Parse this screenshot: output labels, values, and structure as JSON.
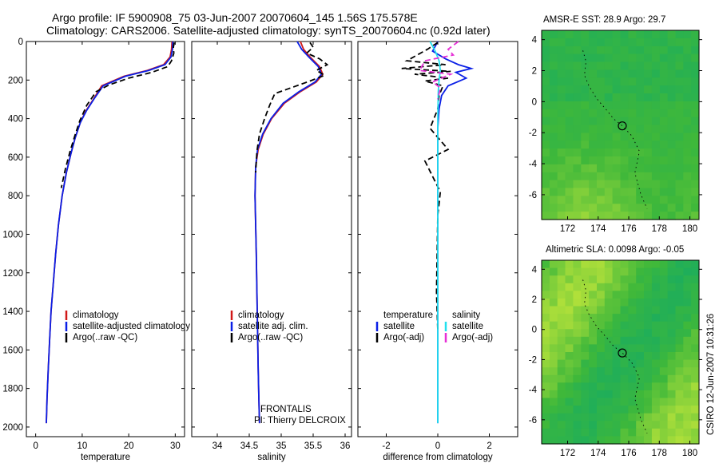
{
  "header": {
    "title_line1": "Argo profile: IF 5900908_75 03-Jun-2007 20070604_145 1.56S 175.578E",
    "title_line2": "Climatology: CARS2006. Satellite-adjusted climatology: synTS_20070604.nc (0.92d later)"
  },
  "side_text": "CSIRO 12-Jun-2007 10:31:26",
  "colors": {
    "climatology": "#d01818",
    "satellite": "#0a1fe6",
    "argo": "#000000",
    "sal_satellite": "#22e0ee",
    "sal_argo": "#e62fd6",
    "map_base": "#3fb83a",
    "map_high": "#c8e83a",
    "map_low": "#1fae5a"
  },
  "chart_data": [
    {
      "type": "line",
      "title": "",
      "xlabel": "temperature",
      "ylabel": "",
      "xlim": [
        -2,
        32
      ],
      "ylim": [
        2050,
        0
      ],
      "xticks": [
        0,
        10,
        20,
        30
      ],
      "yticks": [
        0,
        200,
        400,
        600,
        800,
        1000,
        1200,
        1400,
        1600,
        1800,
        2000
      ],
      "legend": [
        "climatology",
        "satellite-adjusted climatology",
        "Argo(..raw -QC)"
      ],
      "series": [
        {
          "name": "climatology",
          "x": [
            29.3,
            29.2,
            28.9,
            27.5,
            24.0,
            19.0,
            14.2,
            12.4,
            10.8,
            9.6,
            8.5,
            7.6,
            6.6,
            5.7,
            4.9,
            4.3,
            3.8,
            3.3,
            3.0,
            2.7,
            2.45,
            2.3
          ],
          "y": [
            0,
            40,
            80,
            120,
            150,
            180,
            230,
            300,
            360,
            420,
            500,
            580,
            680,
            800,
            950,
            1100,
            1250,
            1400,
            1550,
            1700,
            1850,
            1980
          ]
        },
        {
          "name": "satellite-adjusted climatology",
          "x": [
            29.5,
            29.4,
            29.1,
            27.8,
            24.3,
            19.3,
            14.5,
            12.5,
            10.9,
            9.6,
            8.5,
            7.6,
            6.6,
            5.7,
            4.9,
            4.3,
            3.8,
            3.3,
            3.0,
            2.7,
            2.45,
            2.3
          ],
          "y": [
            0,
            40,
            80,
            120,
            150,
            180,
            230,
            300,
            360,
            420,
            500,
            580,
            680,
            800,
            950,
            1100,
            1250,
            1400,
            1550,
            1700,
            1850,
            1980
          ]
        },
        {
          "name": "Argo(..raw -QC)",
          "x": [
            29.8,
            29.6,
            29.7,
            29.2,
            28.4,
            25.0,
            20.0,
            15.8,
            13.0,
            11.0,
            9.5,
            8.4,
            7.4,
            6.4,
            5.5
          ],
          "y": [
            5,
            30,
            60,
            100,
            130,
            160,
            190,
            225,
            260,
            330,
            410,
            490,
            570,
            660,
            760
          ]
        }
      ]
    },
    {
      "type": "line",
      "title": "",
      "xlabel": "salinity",
      "ylabel": "",
      "xlim": [
        33.6,
        36.1
      ],
      "ylim": [
        2050,
        0
      ],
      "xticks": [
        34,
        34.5,
        35,
        35.5,
        36
      ],
      "legend": [
        "climatology",
        "satellite adj. clim.",
        "Argo(..raw -QC)"
      ],
      "annotation": [
        "FRONTALIS",
        "PI: Thierry DELCROIX"
      ],
      "series": [
        {
          "name": "climatology",
          "x": [
            35.3,
            35.35,
            35.45,
            35.6,
            35.65,
            35.55,
            35.3,
            35.05,
            34.85,
            34.72,
            34.64,
            34.6,
            34.59,
            34.6,
            34.61,
            34.62,
            34.63,
            34.64,
            34.65,
            34.66
          ],
          "y": [
            0,
            40,
            80,
            130,
            170,
            210,
            260,
            320,
            400,
            480,
            560,
            650,
            800,
            950,
            1100,
            1300,
            1500,
            1700,
            1850,
            1980
          ]
        },
        {
          "name": "satellite adj. clim.",
          "x": [
            35.25,
            35.32,
            35.43,
            35.58,
            35.63,
            35.53,
            35.28,
            35.03,
            34.84,
            34.71,
            34.63,
            34.6,
            34.59,
            34.6,
            34.61,
            34.62,
            34.63,
            34.64,
            34.65,
            34.66
          ],
          "y": [
            0,
            40,
            80,
            130,
            170,
            210,
            260,
            320,
            400,
            480,
            560,
            650,
            800,
            950,
            1100,
            1300,
            1500,
            1700,
            1850,
            1980
          ]
        },
        {
          "name": "Argo(..raw -QC)",
          "x": [
            35.45,
            35.5,
            35.4,
            35.6,
            35.72,
            35.55,
            35.68,
            35.45,
            35.2,
            34.9,
            34.82,
            34.74,
            34.66,
            34.62,
            34.6
          ],
          "y": [
            5,
            30,
            60,
            90,
            120,
            150,
            175,
            205,
            235,
            270,
            330,
            400,
            480,
            570,
            680
          ]
        }
      ]
    },
    {
      "type": "line",
      "title": "",
      "xlabel": "difference from climatology",
      "ylabel": "",
      "xlim": [
        -3.1,
        3.1
      ],
      "ylim": [
        2050,
        0
      ],
      "xticks": [
        -2,
        0,
        2
      ],
      "legend_groups": [
        {
          "heading": "temperature",
          "items": [
            "satellite",
            "Argo(-adj)"
          ]
        },
        {
          "heading": "salinity",
          "items": [
            "satellite",
            "Argo(-adj)"
          ]
        }
      ],
      "series": [
        {
          "name": "temperature satellite",
          "x": [
            0.0,
            -0.2,
            0.3,
            0.8,
            1.3,
            0.7,
            1.1,
            0.4,
            0.15,
            0.05,
            0.0,
            0.0,
            0.0
          ],
          "y": [
            0,
            50,
            90,
            120,
            140,
            160,
            190,
            230,
            280,
            350,
            450,
            700,
            1980
          ]
        },
        {
          "name": "temperature Argo(-adj)",
          "x": [
            0.0,
            -0.4,
            -1.2,
            0.3,
            -1.4,
            0.5,
            -0.9,
            0.4,
            -0.5,
            0.2,
            0.05,
            0.0,
            -0.3,
            0.4,
            -0.5,
            -0.2,
            0.1,
            0.0,
            -0.05,
            0.0
          ],
          "y": [
            5,
            40,
            100,
            120,
            140,
            155,
            170,
            190,
            205,
            230,
            280,
            350,
            450,
            560,
            620,
            700,
            780,
            900,
            1300,
            1500
          ]
        },
        {
          "name": "salinity satellite",
          "x": [
            -0.3,
            -0.1,
            0.05,
            0.1,
            0.05,
            0.02,
            0.0,
            0.0
          ],
          "y": [
            0,
            50,
            100,
            150,
            200,
            260,
            400,
            1980
          ]
        },
        {
          "name": "salinity Argo(-adj)",
          "x": [
            0.8,
            0.4,
            0.6,
            -0.5,
            -0.7,
            0.5,
            -0.2,
            0.1,
            0.0
          ],
          "y": [
            0,
            40,
            70,
            100,
            150,
            170,
            210,
            240,
            300
          ]
        }
      ]
    },
    {
      "type": "heatmap",
      "title": "AMSR-E SST: 28.9  Argo: 29.7",
      "xlabel": "",
      "ylabel": "",
      "xlim": [
        170.3,
        180.6
      ],
      "ylim": [
        -7.6,
        4.6
      ],
      "xticks": [
        172,
        174,
        176,
        178,
        180
      ],
      "yticks": [
        4,
        2,
        0,
        -2,
        -4,
        -6
      ],
      "float_position": {
        "lon": 175.578,
        "lat": -1.56
      }
    },
    {
      "type": "heatmap",
      "title": "Altimetric SLA: 0.0098  Argo: -0.05",
      "xlabel": "",
      "ylabel": "",
      "xlim": [
        170.3,
        180.6
      ],
      "ylim": [
        -7.6,
        4.6
      ],
      "xticks": [
        172,
        174,
        176,
        178,
        180
      ],
      "yticks": [
        4,
        2,
        0,
        -2,
        -4,
        -6
      ],
      "float_position": {
        "lon": 175.578,
        "lat": -1.56
      }
    }
  ]
}
